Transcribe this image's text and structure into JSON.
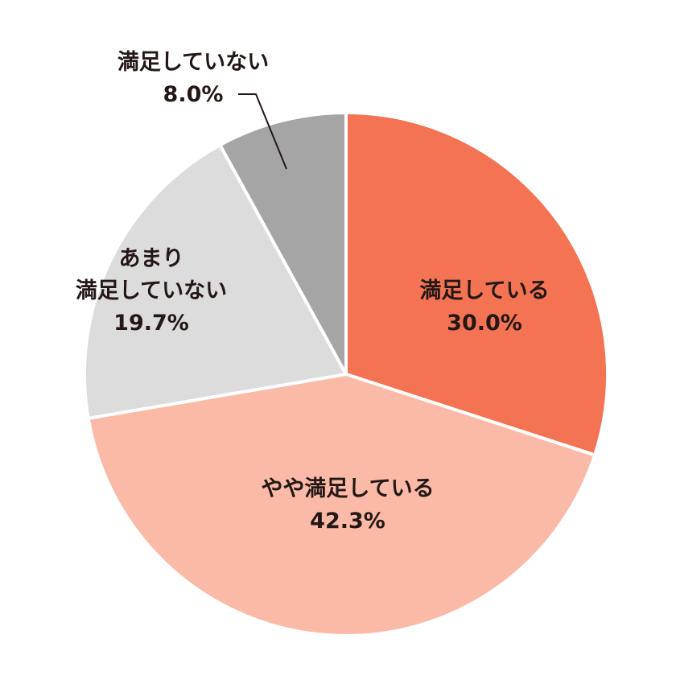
{
  "chart_data": {
    "type": "pie",
    "categories": [
      "満足している",
      "やや満足している",
      "あまり\n満足していない",
      "満足していない"
    ],
    "values": [
      30.0,
      42.3,
      19.7,
      8.0
    ],
    "value_labels": [
      "30.0%",
      "42.3%",
      "19.7%",
      "8.0%"
    ],
    "colors": [
      "#f47352",
      "#fbbaa7",
      "#dcdcdc",
      "#a5a5a5"
    ]
  }
}
